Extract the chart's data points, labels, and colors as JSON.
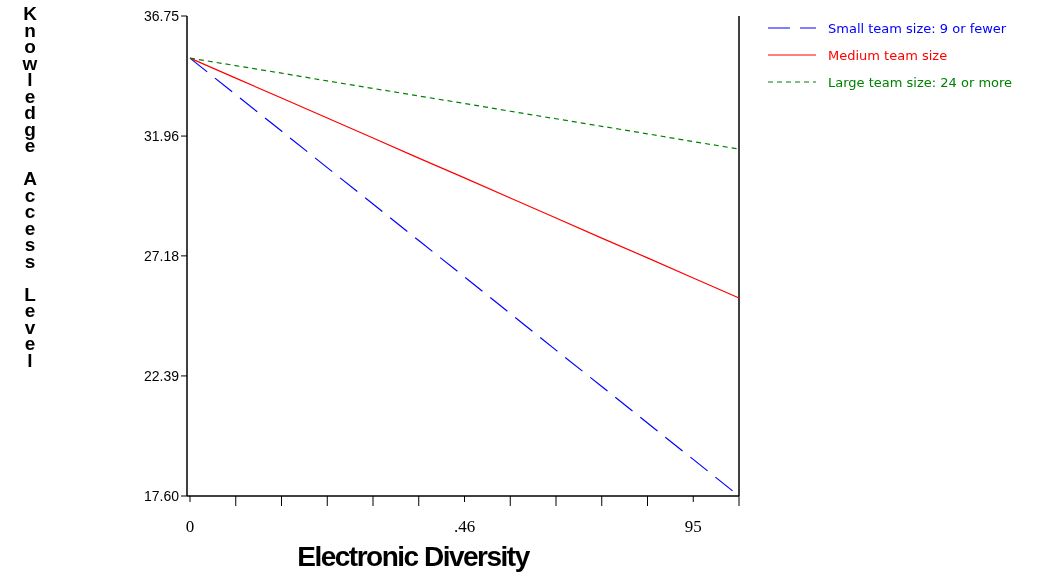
{
  "chart_data": {
    "type": "line",
    "xlabel": "Electronic Diversity",
    "ylabel": "Knowledge Access Level",
    "categories": [
      "0",
      null,
      null,
      null,
      null,
      null,
      ".46",
      null,
      null,
      null,
      null,
      "95",
      null
    ],
    "ylim": [
      17.6,
      36.75
    ],
    "yticks": [
      {
        "value": 17.6,
        "label": "17.60"
      },
      22.39,
      27.18,
      31.96,
      36.75
    ],
    "series": [
      {
        "name": "Small team size: 9 or fewer",
        "color": "#0000ff",
        "values": [
          35.07,
          33.61,
          32.16,
          30.7,
          29.25,
          27.79,
          26.34,
          24.88,
          23.42,
          21.97,
          20.51,
          19.06,
          17.6
        ],
        "line_style": "dashed"
      },
      {
        "name": "Medium team size",
        "color": "#ff0000",
        "values": [
          35.07,
          34.27,
          33.48,
          32.68,
          31.88,
          31.08,
          30.29,
          29.49,
          28.69,
          27.89,
          27.1,
          26.3,
          25.5
        ],
        "line_style": "solid"
      },
      {
        "name": "Large team size: 24 or more",
        "color": "#008000",
        "values": [
          35.07,
          34.77,
          34.47,
          34.16,
          33.86,
          33.56,
          33.26,
          32.95,
          32.65,
          32.35,
          32.05,
          31.74,
          31.44
        ],
        "line_style": "dotted"
      }
    ],
    "legend": "top right",
    "grid": false,
    "marker": "none"
  }
}
